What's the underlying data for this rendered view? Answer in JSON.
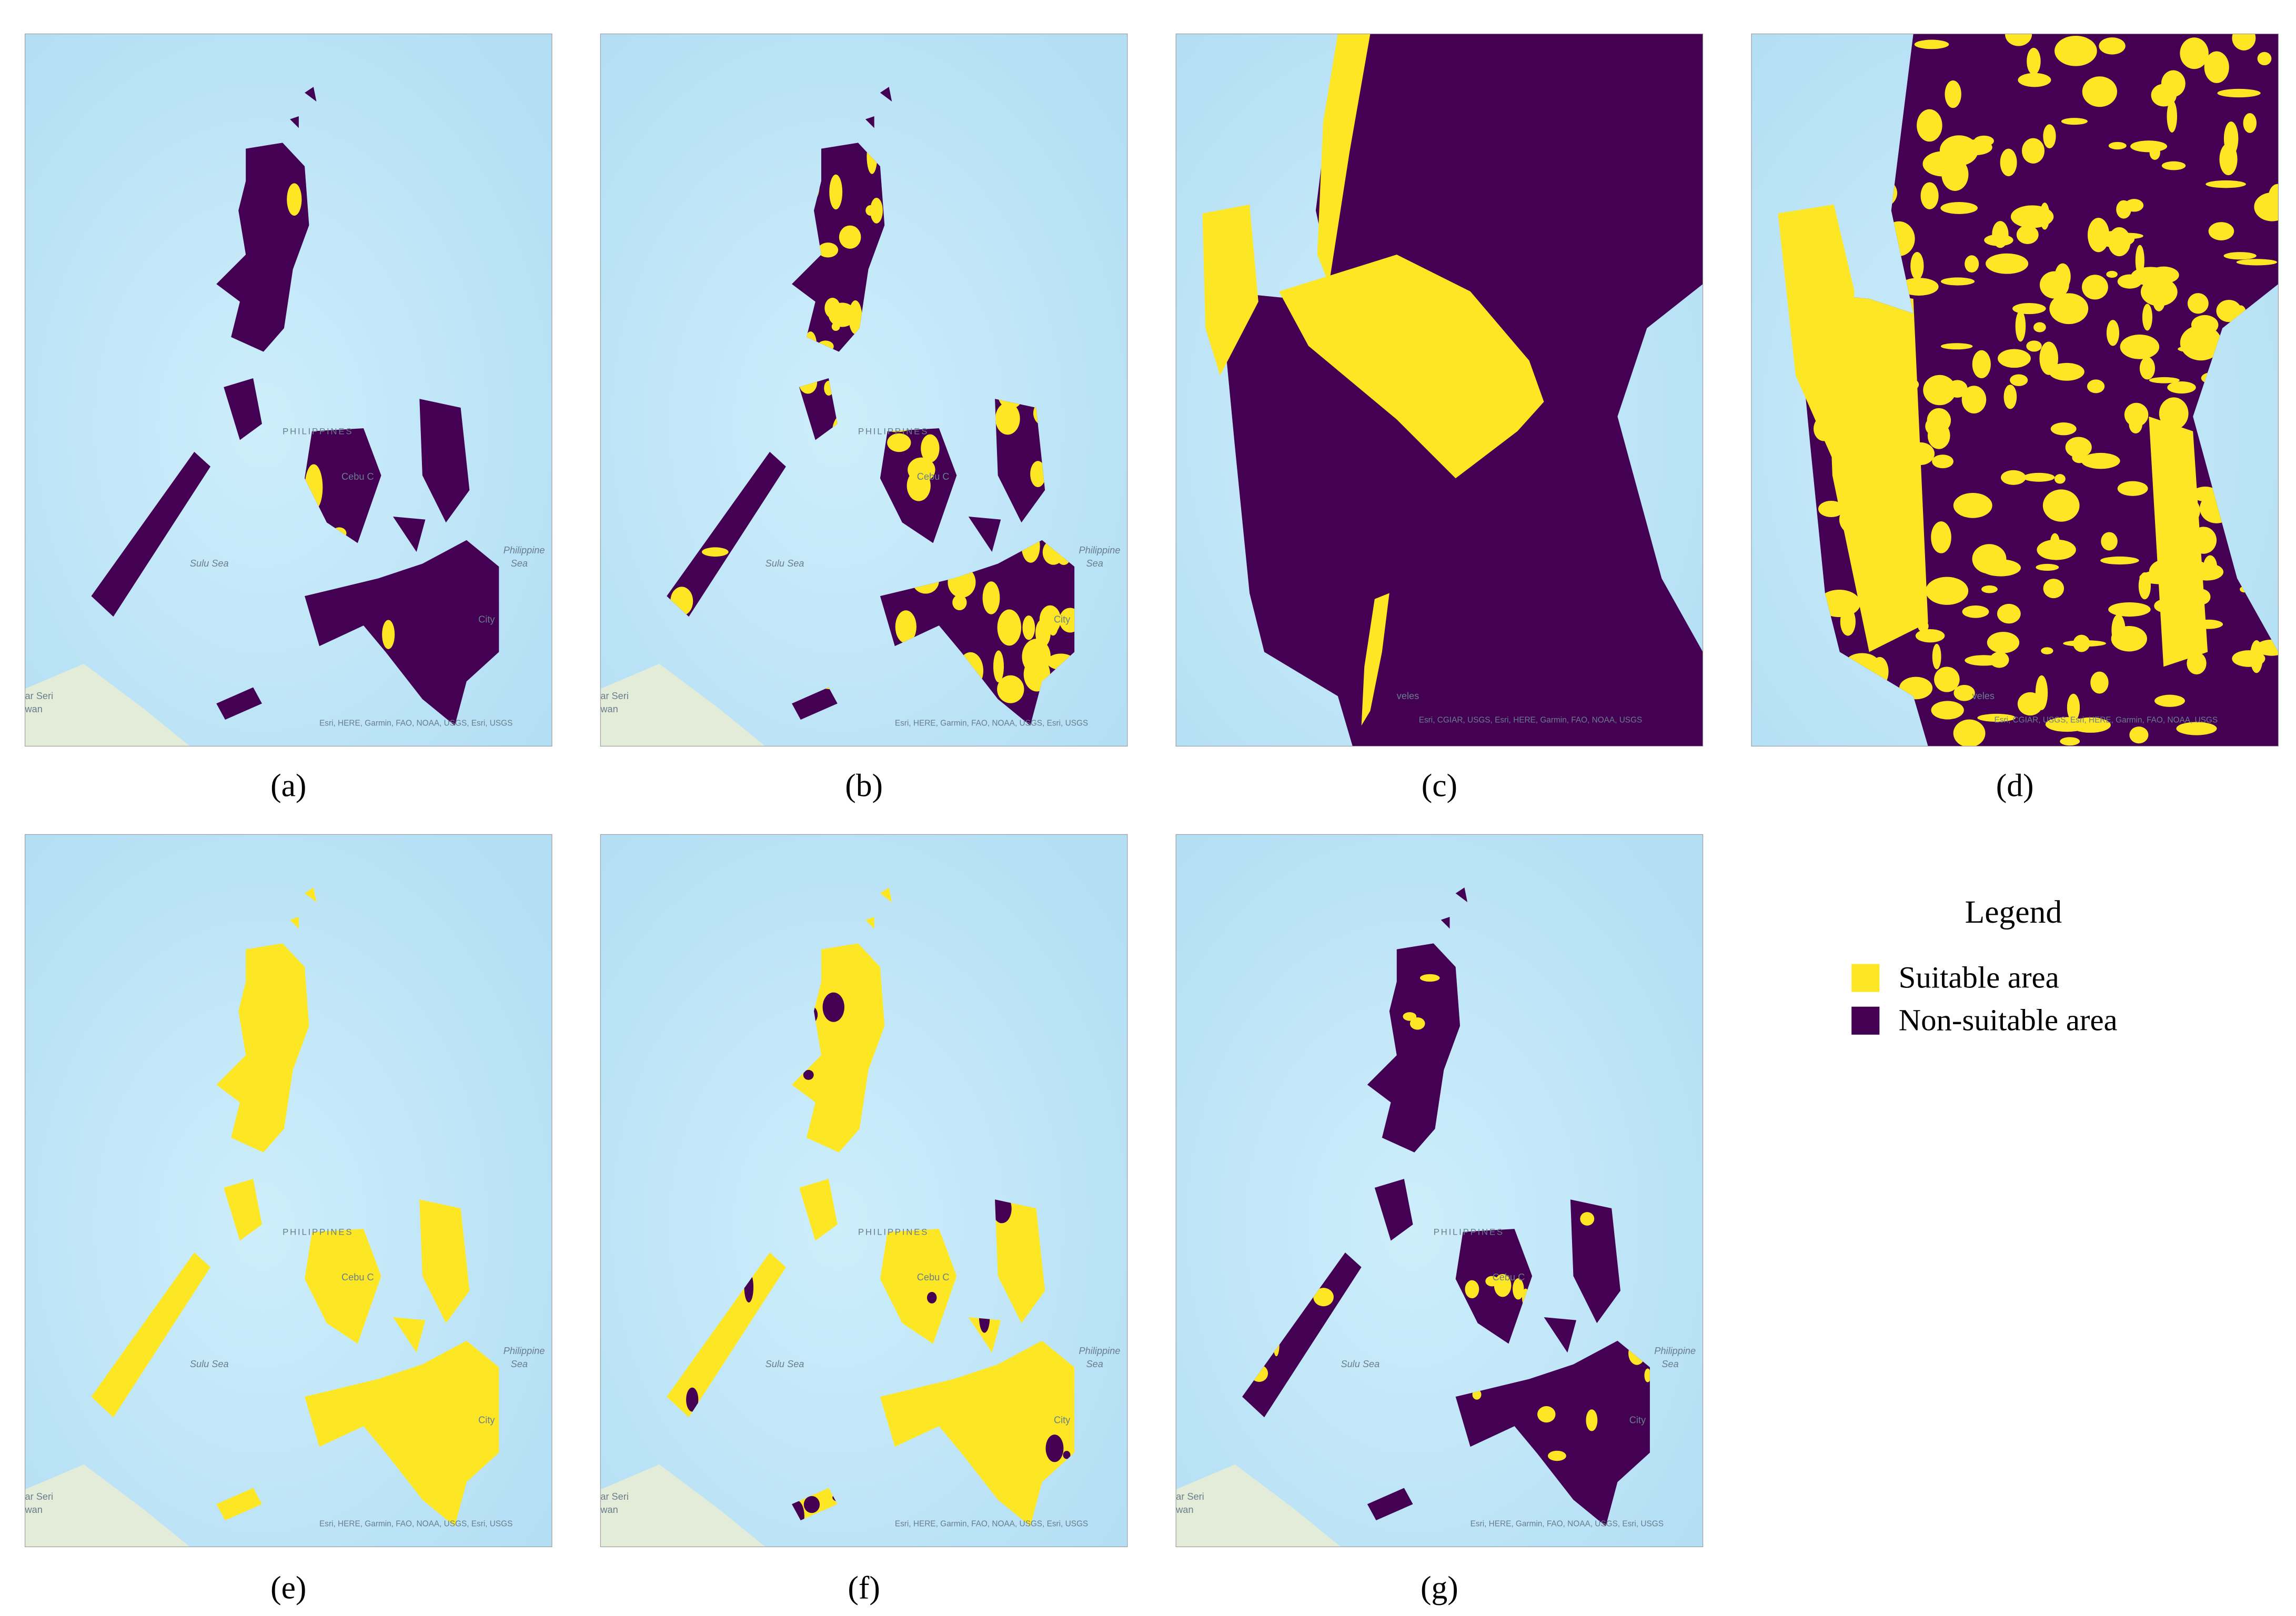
{
  "panels": [
    {
      "label": "(a)",
      "place_labels": [
        "PHILIPPINES",
        "Cebu C",
        "Sulu Sea",
        "Philippine",
        "Sea",
        "City",
        "ar Seri",
        "wan"
      ],
      "attribution": "Esri, HERE, Garmin, FAO, NOAA, USGS, Esri, USGS"
    },
    {
      "label": "(b)",
      "place_labels": [
        "PHILIPPINES",
        "Cebu C",
        "Sulu Sea",
        "Philippine",
        "Sea",
        "City",
        "ar Seri",
        "wan"
      ],
      "attribution": "Esri, HERE, Garmin, FAO, NOAA, USGS, Esri, USGS"
    },
    {
      "label": "(c)",
      "place_labels": [
        "veles"
      ],
      "attribution": "Esri, CGIAR, USGS, Esri, HERE, Garmin, FAO, NOAA, USGS"
    },
    {
      "label": "(d)",
      "place_labels": [
        "veles"
      ],
      "attribution": "Esri, CGIAR, USGS, Esri, HERE, Garmin, FAO, NOAA, USGS"
    },
    {
      "label": "(e)",
      "place_labels": [
        "PHILIPPINES",
        "Cebu C",
        "Sulu Sea",
        "Philippine",
        "Sea",
        "City",
        "ar Seri",
        "wan"
      ],
      "attribution": "Esri, HERE, Garmin, FAO, NOAA, USGS, Esri, USGS"
    },
    {
      "label": "(f)",
      "place_labels": [
        "PHILIPPINES",
        "Cebu C",
        "Sulu Sea",
        "Philippine",
        "Sea",
        "City",
        "ar Seri",
        "wan"
      ],
      "attribution": "Esri, HERE, Garmin, FAO, NOAA, USGS, Esri, USGS"
    },
    {
      "label": "(g)",
      "place_labels": [
        "PHILIPPINES",
        "Cebu C",
        "Sulu Sea",
        "Philippine",
        "Sea",
        "City",
        "ar Seri",
        "wan"
      ],
      "attribution": "Esri, HERE, Garmin, FAO, NOAA, USGS, Esri, USGS"
    }
  ],
  "legend": {
    "title": "Legend",
    "items": [
      {
        "name": "Suitable area",
        "color": "#fde725"
      },
      {
        "name": "Non-suitable area",
        "color": "#440154"
      }
    ]
  }
}
